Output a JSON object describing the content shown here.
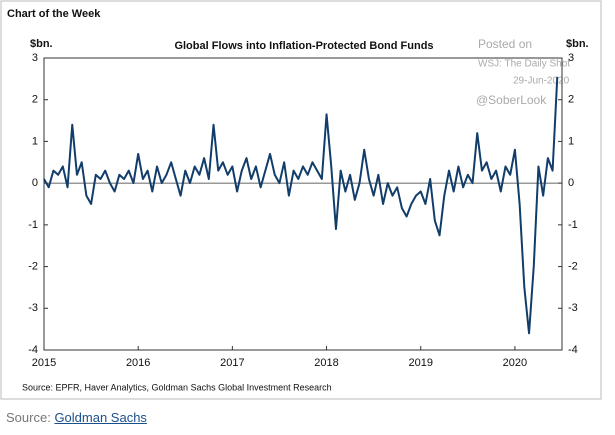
{
  "chart_data": {
    "type": "line",
    "header": "Chart of the Week",
    "title": "Global Flows into Inflation-Protected Bond Funds",
    "ylabel": "$bn.",
    "y2label": "$bn.",
    "annotations": [
      "Posted on",
      "WSJ: The Daily Shot",
      "29-Jun-2020",
      "@SoberLook"
    ],
    "source": "Source: EPFR, Haver Analytics, Goldman Sachs Global Investment Research",
    "x": [
      2015.0,
      2015.05,
      2015.1,
      2015.15,
      2015.2,
      2015.25,
      2015.3,
      2015.35,
      2015.4,
      2015.45,
      2015.5,
      2015.55,
      2015.6,
      2015.65,
      2015.7,
      2015.75,
      2015.8,
      2015.85,
      2015.9,
      2015.95,
      2016.0,
      2016.05,
      2016.1,
      2016.15,
      2016.2,
      2016.25,
      2016.3,
      2016.35,
      2016.4,
      2016.45,
      2016.5,
      2016.55,
      2016.6,
      2016.65,
      2016.7,
      2016.75,
      2016.8,
      2016.85,
      2016.9,
      2016.95,
      2017.0,
      2017.05,
      2017.1,
      2017.15,
      2017.2,
      2017.25,
      2017.3,
      2017.35,
      2017.4,
      2017.45,
      2017.5,
      2017.55,
      2017.6,
      2017.65,
      2017.7,
      2017.75,
      2017.8,
      2017.85,
      2017.9,
      2017.95,
      2018.0,
      2018.05,
      2018.1,
      2018.15,
      2018.2,
      2018.25,
      2018.3,
      2018.35,
      2018.4,
      2018.45,
      2018.5,
      2018.55,
      2018.6,
      2018.65,
      2018.7,
      2018.75,
      2018.8,
      2018.85,
      2018.9,
      2018.95,
      2019.0,
      2019.05,
      2019.1,
      2019.15,
      2019.2,
      2019.25,
      2019.3,
      2019.35,
      2019.4,
      2019.45,
      2019.5,
      2019.55,
      2019.6,
      2019.65,
      2019.7,
      2019.75,
      2019.8,
      2019.85,
      2019.9,
      2019.95,
      2020.0,
      2020.05,
      2020.1,
      2020.15,
      2020.2,
      2020.25,
      2020.3,
      2020.35,
      2020.4,
      2020.45
    ],
    "series": [
      {
        "color": "#123d6a",
        "values": [
          0.1,
          -0.1,
          0.3,
          0.2,
          0.4,
          -0.1,
          1.4,
          0.2,
          0.5,
          -0.3,
          -0.5,
          0.2,
          0.1,
          0.3,
          0.0,
          -0.2,
          0.2,
          0.1,
          0.3,
          0.0,
          0.7,
          0.1,
          0.3,
          -0.2,
          0.4,
          0.0,
          0.2,
          0.5,
          0.1,
          -0.3,
          0.3,
          0.0,
          0.4,
          0.2,
          0.6,
          0.1,
          1.4,
          0.3,
          0.5,
          0.2,
          0.4,
          -0.2,
          0.3,
          0.6,
          0.1,
          0.4,
          -0.1,
          0.3,
          0.7,
          0.2,
          0.0,
          0.5,
          -0.3,
          0.3,
          0.1,
          0.4,
          0.2,
          0.5,
          0.3,
          0.1,
          1.65,
          0.4,
          -1.1,
          0.3,
          -0.2,
          0.2,
          -0.4,
          0.0,
          0.8,
          0.1,
          -0.3,
          0.2,
          -0.5,
          0.0,
          -0.3,
          -0.1,
          -0.6,
          -0.8,
          -0.5,
          -0.3,
          -0.2,
          -0.5,
          0.1,
          -0.9,
          -1.25,
          -0.3,
          0.3,
          -0.2,
          0.4,
          -0.1,
          0.2,
          0.0,
          1.2,
          0.3,
          0.5,
          0.1,
          0.3,
          -0.2,
          0.4,
          0.2,
          0.8,
          -0.5,
          -2.5,
          -3.6,
          -2.0,
          0.4,
          -0.3,
          0.6,
          0.3,
          2.55
        ]
      }
    ],
    "xlim": [
      2015,
      2020.5
    ],
    "xticks": [
      2015,
      2016,
      2017,
      2018,
      2019,
      2020
    ],
    "ylim": [
      -4,
      3
    ],
    "yticks": [
      -4,
      -3,
      -2,
      -1,
      0,
      1,
      2,
      3
    ],
    "y2lim": [
      -4,
      3
    ],
    "y2ticks": [
      -4,
      -3,
      -2,
      -1,
      0,
      1,
      2,
      3
    ],
    "zero_line": true
  },
  "footer": {
    "prefix": "Source:",
    "link": "Goldman Sachs"
  }
}
